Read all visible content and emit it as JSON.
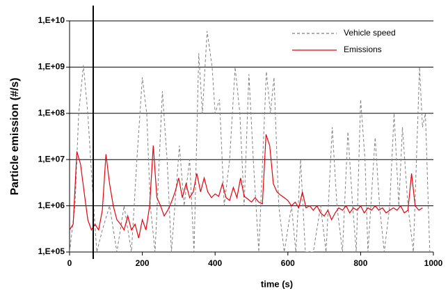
{
  "chart_data": {
    "type": "line",
    "xlabel": "time (s)",
    "ylabel": "Particle emission (#/s)",
    "xlim": [
      0,
      1000
    ],
    "xticks": [
      0,
      200,
      400,
      600,
      800,
      1000
    ],
    "ylim": [
      100000,
      10000000000
    ],
    "yticks": [
      {
        "value": 100000,
        "label": "1,E+05"
      },
      {
        "value": 1000000,
        "label": "1,E+06"
      },
      {
        "value": 10000000,
        "label": "1,E+07"
      },
      {
        "value": 100000000,
        "label": "1,E+08"
      },
      {
        "value": 1000000000,
        "label": "1,E+09"
      },
      {
        "value": 10000000000,
        "label": "1,E+10"
      }
    ],
    "log_y": true,
    "grid": true,
    "legend": "upper right",
    "vline_x": 65,
    "series": [
      {
        "name": "Vehicle speed",
        "color": "#808080",
        "dashed": true,
        "x": [
          0,
          15,
          25,
          38,
          50,
          58,
          66,
          75,
          90,
          110,
          130,
          150,
          170,
          185,
          200,
          212,
          222,
          235,
          255,
          268,
          280,
          302,
          315,
          330,
          342,
          355,
          365,
          378,
          392,
          400,
          412,
          425,
          440,
          455,
          468,
          480,
          493,
          505,
          520,
          541,
          552,
          562,
          575,
          590,
          610,
          622,
          635,
          648,
          670,
          690,
          705,
          722,
          735,
          750,
          765,
          778,
          788,
          800,
          812,
          820,
          840,
          852,
          865,
          880,
          892,
          905,
          915,
          930,
          945,
          962,
          970,
          978,
          990
        ],
        "values": [
          100000,
          1000000,
          100000000,
          1100000000,
          100000000,
          10000000,
          1000000,
          100000,
          300000,
          1000000,
          100000,
          1000000,
          100000,
          10000000,
          600000000,
          100000000,
          1000000,
          100000,
          300000000,
          10000000,
          100000,
          20000000,
          1000000,
          10000000,
          100000,
          2000000000,
          100000000,
          6000000000,
          1000000000,
          100000000,
          200000000,
          1000000,
          10000000,
          1000000000,
          100000000,
          1000000,
          700000000,
          10000000,
          100000,
          800000000,
          100000000,
          600000000,
          1000000,
          100000,
          1000000,
          100000,
          10000000,
          100000,
          100000,
          1000000,
          100000,
          50000000,
          1000000,
          100000,
          40000000,
          1000000,
          100000,
          200000000,
          10000000,
          100000,
          30000000,
          1000000,
          100000,
          1000000,
          100000000,
          1000000,
          50000000,
          1000000,
          100000,
          1000000000,
          50000000,
          100000000,
          100000
        ]
      },
      {
        "name": "Emissions",
        "color": "#e8000b",
        "dashed": false,
        "x": [
          0,
          10,
          20,
          30,
          40,
          50,
          60,
          70,
          80,
          90,
          100,
          110,
          120,
          130,
          140,
          150,
          160,
          170,
          180,
          190,
          200,
          210,
          220,
          230,
          240,
          250,
          260,
          270,
          280,
          290,
          300,
          310,
          320,
          330,
          340,
          350,
          360,
          370,
          380,
          390,
          400,
          410,
          420,
          430,
          440,
          450,
          460,
          470,
          480,
          490,
          500,
          510,
          520,
          530,
          540,
          550,
          560,
          570,
          580,
          590,
          600,
          610,
          620,
          630,
          640,
          650,
          660,
          670,
          680,
          690,
          700,
          710,
          720,
          730,
          740,
          750,
          760,
          770,
          780,
          790,
          800,
          810,
          820,
          830,
          840,
          850,
          860,
          870,
          880,
          890,
          900,
          910,
          920,
          930,
          940,
          950,
          960,
          970
        ],
        "values": [
          300000,
          400000,
          15000000,
          8000000,
          2000000,
          500000,
          300000,
          400000,
          300000,
          800000,
          13000000,
          3000000,
          1000000,
          500000,
          400000,
          300000,
          600000,
          300000,
          400000,
          200000,
          500000,
          300000,
          1000000,
          20000000,
          1500000,
          1000000,
          600000,
          800000,
          1200000,
          2000000,
          4000000,
          1500000,
          3000000,
          1500000,
          2000000,
          5000000,
          2000000,
          4000000,
          2000000,
          1500000,
          1800000,
          1600000,
          3000000,
          1500000,
          1300000,
          2500000,
          1500000,
          4000000,
          1600000,
          1400000,
          1200000,
          1500000,
          1200000,
          1100000,
          35000000,
          20000000,
          3000000,
          2000000,
          1700000,
          1500000,
          1300000,
          1000000,
          1200000,
          900000,
          2000000,
          900000,
          1000000,
          800000,
          1000000,
          700000,
          600000,
          800000,
          500000,
          700000,
          900000,
          800000,
          1000000,
          700000,
          900000,
          800000,
          1000000,
          700000,
          900000,
          800000,
          1000000,
          800000,
          900000,
          700000,
          800000,
          900000,
          800000,
          1000000,
          700000,
          800000,
          5000000,
          1000000,
          800000,
          900000
        ]
      }
    ]
  }
}
